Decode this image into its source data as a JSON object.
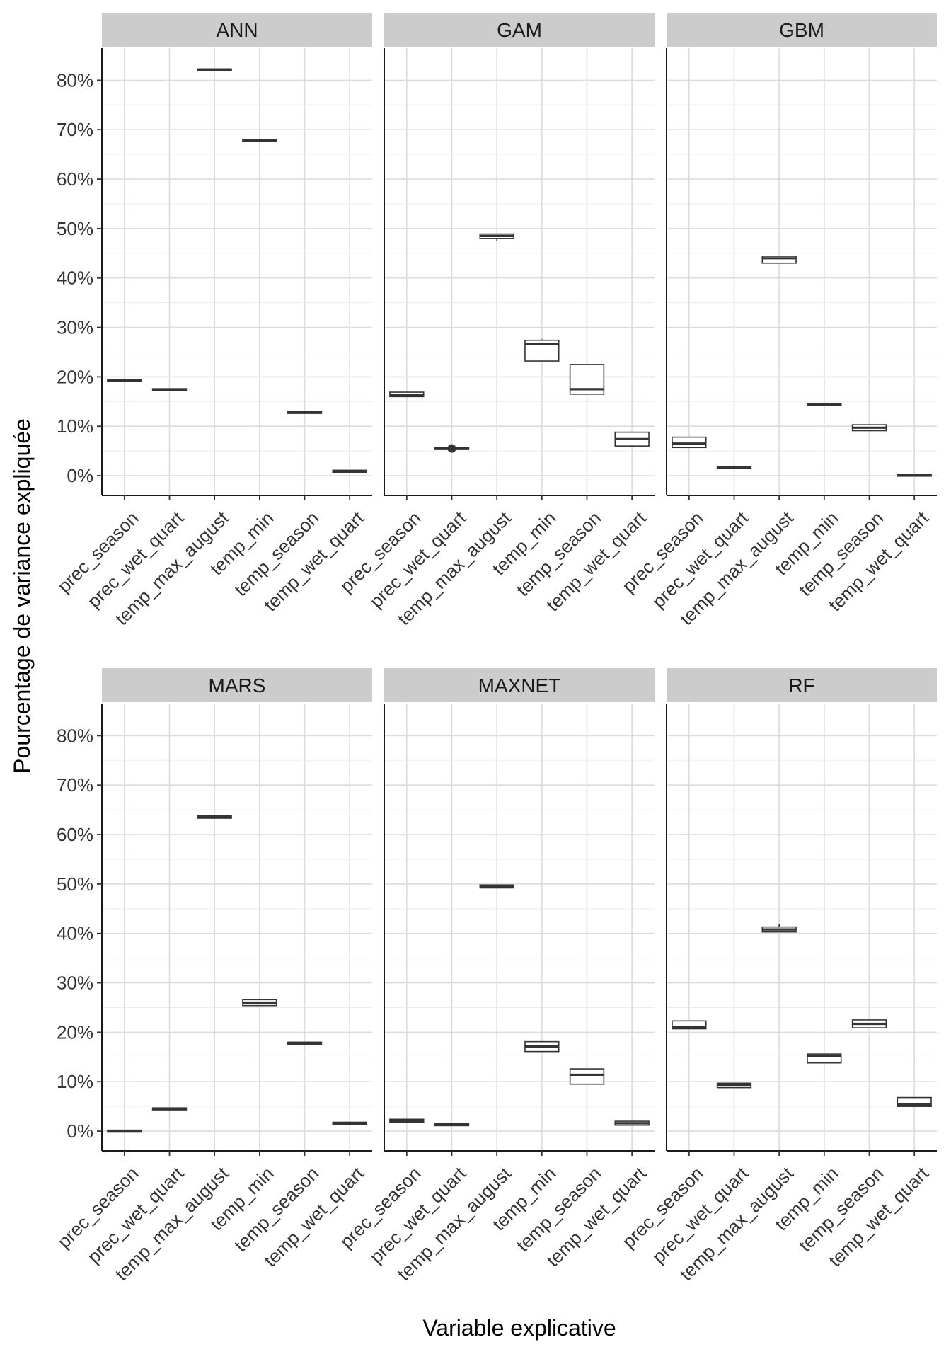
{
  "chart_data": {
    "type": "boxplot",
    "facet_layout": "3 columns x 2 rows",
    "xlabel": "Variable explicative",
    "ylabel": "Pourcentage de variance expliquée",
    "yticks": [
      0,
      10,
      20,
      30,
      40,
      50,
      60,
      70,
      80
    ],
    "ytick_labels": [
      "0%",
      "10%",
      "20%",
      "30%",
      "40%",
      "50%",
      "60%",
      "70%",
      "80%"
    ],
    "ylim": [
      -4,
      86.5
    ],
    "categories": [
      "prec_season",
      "prec_wet_quart",
      "temp_max_august",
      "temp_min",
      "temp_season",
      "temp_wet_quart"
    ],
    "box_order": [
      "min",
      "q1",
      "median",
      "q3",
      "max"
    ],
    "facets": [
      {
        "name": "ANN",
        "boxes": [
          [
            19.1,
            19.1,
            19.3,
            19.5,
            19.5
          ],
          [
            17.2,
            17.2,
            17.4,
            17.6,
            17.6
          ],
          [
            81.9,
            81.9,
            82.1,
            82.3,
            82.3
          ],
          [
            67.6,
            67.6,
            67.8,
            68.0,
            68.0
          ],
          [
            12.6,
            12.6,
            12.8,
            13.0,
            13.0
          ],
          [
            0.7,
            0.7,
            0.9,
            1.1,
            1.1
          ]
        ]
      },
      {
        "name": "GAM",
        "boxes": [
          [
            16.0,
            16.0,
            16.4,
            16.9,
            16.9
          ],
          [
            5.3,
            5.3,
            5.5,
            5.7,
            5.7
          ],
          [
            47.5,
            48.0,
            48.5,
            48.9,
            48.9
          ],
          [
            23.2,
            23.2,
            26.7,
            27.4,
            27.6
          ],
          [
            16.5,
            16.5,
            17.5,
            22.5,
            22.5
          ],
          [
            6.0,
            6.0,
            7.4,
            8.8,
            8.8
          ]
        ]
      },
      {
        "name": "GBM",
        "boxes": [
          [
            5.7,
            5.7,
            6.5,
            7.8,
            7.8
          ],
          [
            1.5,
            1.5,
            1.7,
            1.9,
            1.9
          ],
          [
            43.0,
            43.0,
            44.0,
            44.4,
            44.4
          ],
          [
            14.2,
            14.2,
            14.4,
            14.6,
            14.6
          ],
          [
            9.1,
            9.1,
            9.7,
            10.3,
            10.3
          ],
          [
            -0.1,
            -0.1,
            0.1,
            0.3,
            0.3
          ]
        ]
      },
      {
        "name": "MARS",
        "boxes": [
          [
            -0.2,
            -0.2,
            0.0,
            0.2,
            0.2
          ],
          [
            4.3,
            4.3,
            4.5,
            4.7,
            4.7
          ],
          [
            63.3,
            63.3,
            63.5,
            63.8,
            63.8
          ],
          [
            25.4,
            25.4,
            26.0,
            26.6,
            26.6
          ],
          [
            17.6,
            17.6,
            17.8,
            18.0,
            18.0
          ],
          [
            1.4,
            1.4,
            1.6,
            1.8,
            1.8
          ]
        ]
      },
      {
        "name": "MAXNET",
        "boxes": [
          [
            1.8,
            1.8,
            2.1,
            2.4,
            2.4
          ],
          [
            1.1,
            1.1,
            1.3,
            1.5,
            1.5
          ],
          [
            49.2,
            49.2,
            49.5,
            49.8,
            49.8
          ],
          [
            16.1,
            16.1,
            17.1,
            18.1,
            18.1
          ],
          [
            9.5,
            9.5,
            11.4,
            12.6,
            12.6
          ],
          [
            1.2,
            1.2,
            1.6,
            2.0,
            2.0
          ]
        ]
      },
      {
        "name": "RF",
        "boxes": [
          [
            20.7,
            20.7,
            21.1,
            22.3,
            22.3
          ],
          [
            8.8,
            8.8,
            9.3,
            9.7,
            9.7
          ],
          [
            40.3,
            40.3,
            40.8,
            41.3,
            41.9
          ],
          [
            13.8,
            13.8,
            15.2,
            15.6,
            15.6
          ],
          [
            20.9,
            20.9,
            21.7,
            22.5,
            22.5
          ],
          [
            5.0,
            5.0,
            5.4,
            6.8,
            6.8
          ]
        ]
      }
    ]
  }
}
